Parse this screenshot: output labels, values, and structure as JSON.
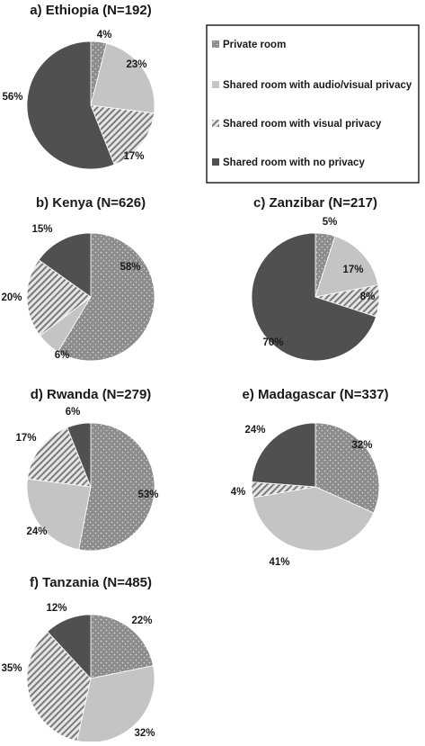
{
  "colors": {
    "private_room": "#8c8c8c",
    "shared_audio_visual": "#c4c4c4",
    "shared_visual": "#dcdcdc",
    "shared_no_privacy": "#505050",
    "outline": "#ffffff"
  },
  "legend": {
    "items": [
      {
        "label": "Private room",
        "pattern": "dots"
      },
      {
        "label": "Shared room with audio/visual privacy",
        "pattern": "solid-light"
      },
      {
        "label": "Shared room with visual privacy",
        "pattern": "hatch"
      },
      {
        "label": "Shared room with no privacy",
        "pattern": "solid-dark"
      }
    ]
  },
  "chart_data": [
    {
      "type": "pie",
      "title": "a) Ethiopia (N=192)",
      "categories": [
        "Private room",
        "Shared room with audio/visual privacy",
        "Shared room with visual privacy",
        "Shared room with no privacy"
      ],
      "values": [
        4,
        23,
        17,
        56
      ],
      "labels": [
        "4%",
        "23%",
        "17%",
        "56%"
      ]
    },
    {
      "type": "pie",
      "title": "b) Kenya (N=626)",
      "categories": [
        "Private room",
        "Shared room with audio/visual privacy",
        "Shared room with visual privacy",
        "Shared room with no privacy"
      ],
      "values": [
        58,
        6,
        20,
        15
      ],
      "labels": [
        "58%",
        "6%",
        "20%",
        "15%"
      ]
    },
    {
      "type": "pie",
      "title": "c) Zanzibar (N=217)",
      "categories": [
        "Private room",
        "Shared room with audio/visual privacy",
        "Shared room with visual privacy",
        "Shared room with no privacy"
      ],
      "values": [
        5,
        17,
        8,
        70
      ],
      "labels": [
        "5%",
        "17%",
        "8%",
        "70%"
      ]
    },
    {
      "type": "pie",
      "title": "d) Rwanda (N=279)",
      "categories": [
        "Private room",
        "Shared room with audio/visual privacy",
        "Shared room with visual privacy",
        "Shared room with no privacy"
      ],
      "values": [
        53,
        24,
        17,
        6
      ],
      "labels": [
        "53%",
        "24%",
        "17%",
        "6%"
      ]
    },
    {
      "type": "pie",
      "title": "e) Madagascar (N=337)",
      "categories": [
        "Private room",
        "Shared room with audio/visual privacy",
        "Shared room with visual privacy",
        "Shared room with no privacy"
      ],
      "values": [
        32,
        41,
        4,
        24
      ],
      "labels": [
        "32%",
        "41%",
        "4%",
        "24%"
      ]
    },
    {
      "type": "pie",
      "title": "f) Tanzania (N=485)",
      "categories": [
        "Private room",
        "Shared room with audio/visual privacy",
        "Shared room with visual privacy",
        "Shared room with no privacy"
      ],
      "values": [
        22,
        32,
        35,
        12
      ],
      "labels": [
        "22%",
        "32%",
        "35%",
        "12%"
      ]
    }
  ]
}
